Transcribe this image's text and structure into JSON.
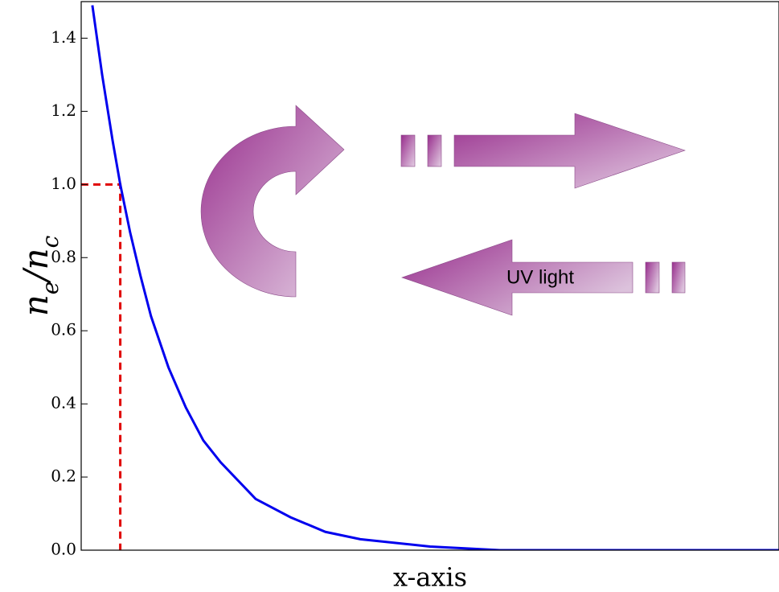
{
  "chart_data": {
    "type": "line",
    "ylabel": "ne/nc",
    "xlabel": "x-axis",
    "annotation": "UV light",
    "x": [
      0.16,
      0.3,
      0.45,
      0.56,
      0.7,
      0.85,
      1.0,
      1.25,
      1.5,
      1.75,
      2.0,
      2.5,
      3.0,
      3.5,
      4.0,
      5.0,
      6.0,
      7.0,
      8.0,
      9.0,
      10.0
    ],
    "series": [
      {
        "color": "#0000ee",
        "values": [
          1.49,
          1.3,
          1.12,
          1.0,
          0.87,
          0.75,
          0.64,
          0.5,
          0.39,
          0.3,
          0.24,
          0.14,
          0.09,
          0.05,
          0.03,
          0.01,
          0,
          0,
          0,
          0,
          0
        ]
      }
    ],
    "threshold": {
      "x": 0.56,
      "y": 1.0,
      "color": "#e00000"
    },
    "xlim": [
      0,
      10
    ],
    "ylim": [
      0,
      1.5
    ],
    "yticks": [
      {
        "value": 0,
        "label": "0.0"
      },
      {
        "value": 0.2,
        "label": "0.2"
      },
      {
        "value": 0.4,
        "label": "0.4"
      },
      {
        "value": 0.6,
        "label": "0.6"
      },
      {
        "value": 0.8,
        "label": "0.8"
      },
      {
        "value": 1.0,
        "label": "1.0"
      },
      {
        "value": 1.2,
        "label": "1.2"
      },
      {
        "value": 1.4,
        "label": "1.4"
      }
    ]
  }
}
